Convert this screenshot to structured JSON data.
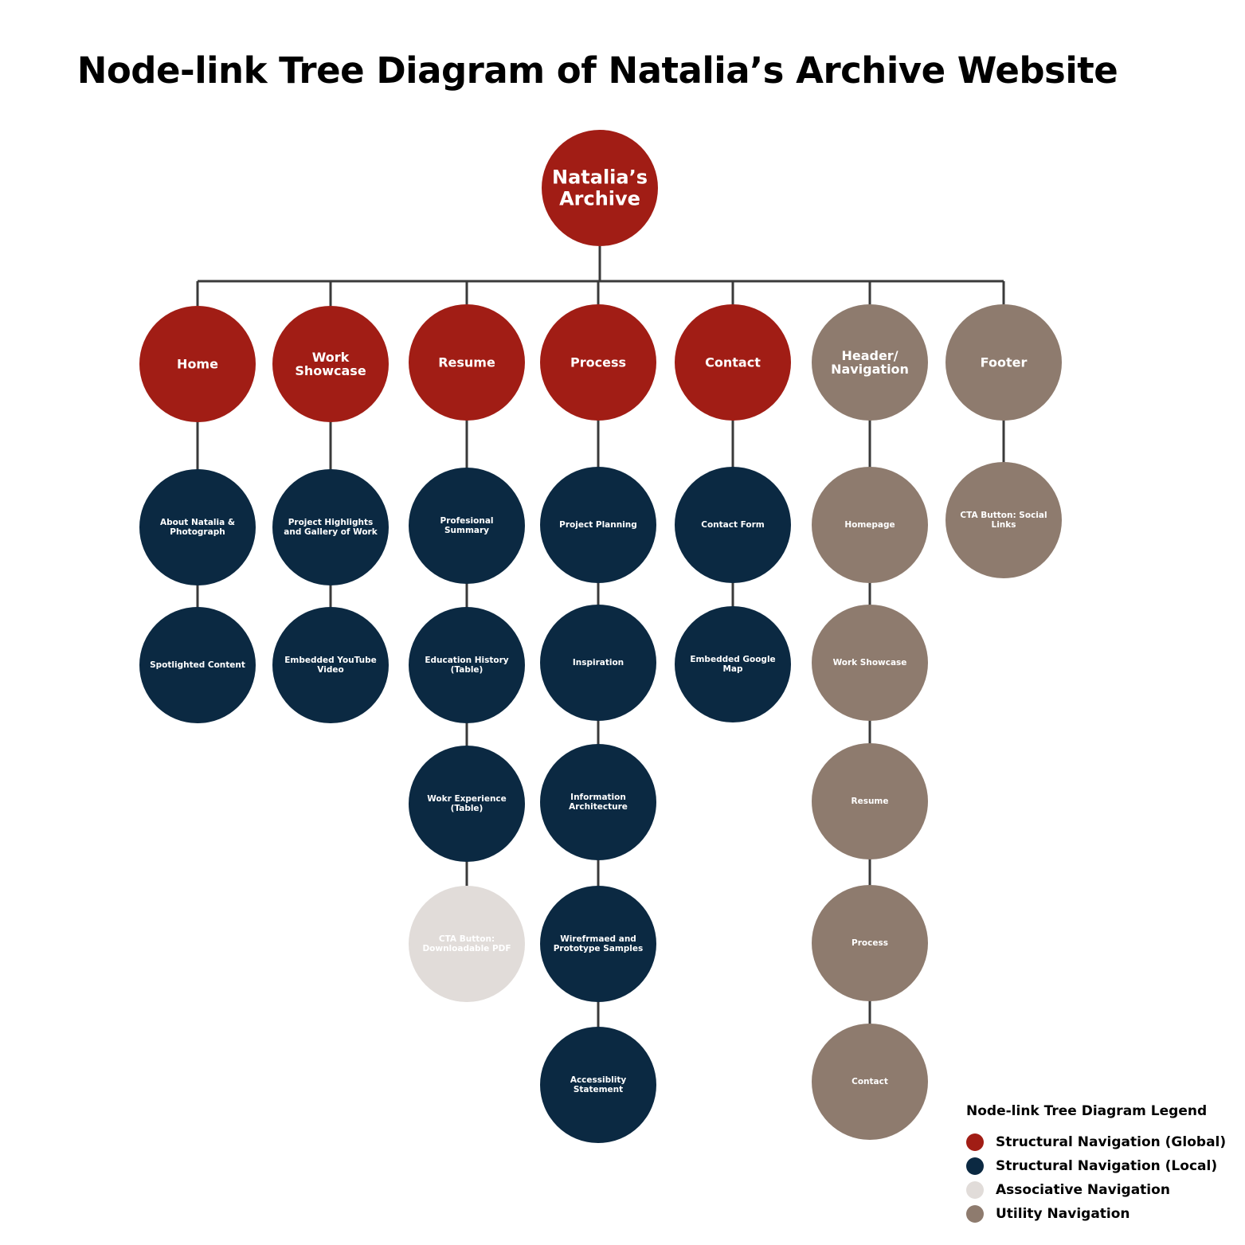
{
  "title": "Node-link Tree Diagram of Natalia’s Archive Website",
  "colors": {
    "global": "#a11d15",
    "local": "#0b2942",
    "associative": "#e1dcd9",
    "utility": "#8e7b6e",
    "line": "#3a3a3a"
  },
  "root": {
    "lines": [
      "Natalia’s",
      "Archive"
    ],
    "type": "global"
  },
  "columns": [
    {
      "top": {
        "lines": [
          "Home"
        ],
        "type": "global"
      },
      "children": [
        {
          "lines": [
            "About Natalia &",
            "Photograph"
          ],
          "type": "local"
        },
        {
          "lines": [
            "Spotlighted Content"
          ],
          "type": "local"
        }
      ]
    },
    {
      "top": {
        "lines": [
          "Work",
          "Showcase"
        ],
        "type": "global"
      },
      "children": [
        {
          "lines": [
            "Project Highlights",
            "and Gallery of Work"
          ],
          "type": "local"
        },
        {
          "lines": [
            "Embedded YouTube",
            "Video"
          ],
          "type": "local"
        }
      ]
    },
    {
      "top": {
        "lines": [
          "Resume"
        ],
        "type": "global"
      },
      "children": [
        {
          "lines": [
            "Profesional",
            "Summary"
          ],
          "type": "local"
        },
        {
          "lines": [
            "Education History",
            "(Table)"
          ],
          "type": "local"
        },
        {
          "lines": [
            "Wokr Experience",
            "(Table)"
          ],
          "type": "local"
        },
        {
          "lines": [
            "CTA Button:",
            "Downloadable PDF"
          ],
          "type": "associative"
        }
      ]
    },
    {
      "top": {
        "lines": [
          "Process"
        ],
        "type": "global"
      },
      "children": [
        {
          "lines": [
            "Project Planning"
          ],
          "type": "local"
        },
        {
          "lines": [
            "Inspiration"
          ],
          "type": "local"
        },
        {
          "lines": [
            "Information",
            "Architecture"
          ],
          "type": "local"
        },
        {
          "lines": [
            "Wirefrmaed and",
            "Prototype Samples"
          ],
          "type": "local"
        },
        {
          "lines": [
            "Accessiblity",
            "Statement"
          ],
          "type": "local"
        }
      ]
    },
    {
      "top": {
        "lines": [
          "Contact"
        ],
        "type": "global"
      },
      "children": [
        {
          "lines": [
            "Contact Form"
          ],
          "type": "local"
        },
        {
          "lines": [
            "Embedded Google",
            "Map"
          ],
          "type": "local"
        }
      ]
    },
    {
      "top": {
        "lines": [
          "Header/",
          "Navigation"
        ],
        "type": "utility"
      },
      "children": [
        {
          "lines": [
            "Homepage"
          ],
          "type": "utility"
        },
        {
          "lines": [
            "Work Showcase"
          ],
          "type": "utility"
        },
        {
          "lines": [
            "Resume"
          ],
          "type": "utility"
        },
        {
          "lines": [
            "Process"
          ],
          "type": "utility"
        },
        {
          "lines": [
            "Contact"
          ],
          "type": "utility"
        }
      ]
    },
    {
      "top": {
        "lines": [
          "Footer"
        ],
        "type": "utility"
      },
      "children": [
        {
          "lines": [
            "CTA Button: Social",
            "Links"
          ],
          "type": "utility"
        }
      ]
    }
  ],
  "legend": {
    "title": "Node-link Tree Diagram Legend",
    "items": [
      {
        "label": "Structural Navigation (Global)",
        "type": "global"
      },
      {
        "label": "Structural Navigation (Local)",
        "type": "local"
      },
      {
        "label": "Associative Navigation",
        "type": "associative"
      },
      {
        "label": "Utility Navigation",
        "type": "utility"
      }
    ]
  }
}
